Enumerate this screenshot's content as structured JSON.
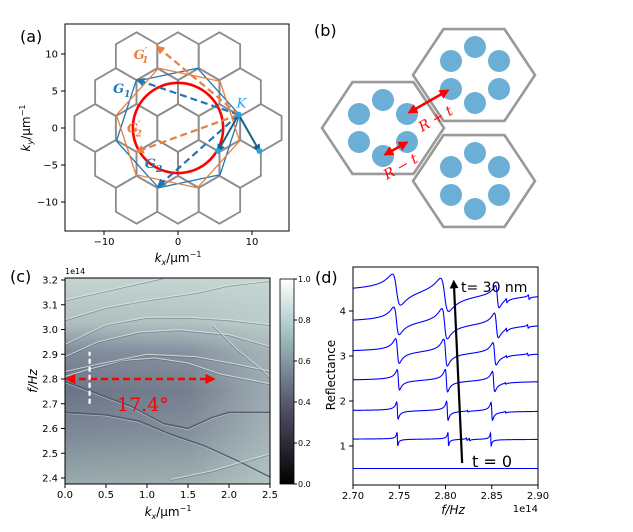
{
  "panels": {
    "a": "(a)",
    "b": "(b)",
    "c": "(c)",
    "d": "(d)"
  },
  "colors": {
    "hexagon": "#8c8c8c",
    "circle": "#ff0000",
    "blue": "#1f77b4",
    "orange": "#e8803f",
    "dark_arrow": "#1b5f85",
    "k_point": "#1ea7e8",
    "pillar": "#6baed6",
    "annotation": "#ff0000",
    "spectrum": "#0000ff"
  },
  "chart_data": [
    {
      "panel": "a",
      "type": "diagram",
      "xlabel": {
        "base": "k",
        "sub": "x",
        "unit": "/μm",
        "sup": "−1"
      },
      "ylabel": {
        "base": "k",
        "sub": "y",
        "unit": "/μm",
        "sup": "−1"
      },
      "xlim": [
        -15.3,
        15
      ],
      "ylim": [
        -14,
        14
      ],
      "xticks": [
        "−10",
        "0",
        "10"
      ],
      "xtick_values": [
        -10,
        0,
        10
      ],
      "yticks": [
        "10",
        "5",
        "0",
        "−5",
        "−10"
      ],
      "ytick_values": [
        10,
        5,
        0,
        -5,
        -10
      ],
      "hexagon_radius": 3.23,
      "hexagon_centers": [
        [
          -11.2,
          0
        ],
        [
          -5.6,
          0
        ],
        [
          0,
          0
        ],
        [
          5.6,
          0
        ],
        [
          11.2,
          0
        ],
        [
          -8.4,
          4.85
        ],
        [
          -2.8,
          4.85
        ],
        [
          2.8,
          4.85
        ],
        [
          8.4,
          4.85
        ],
        [
          -8.4,
          -4.85
        ],
        [
          -2.8,
          -4.85
        ],
        [
          2.8,
          -4.85
        ],
        [
          8.4,
          -4.85
        ],
        [
          -5.6,
          9.7
        ],
        [
          0,
          9.7
        ],
        [
          5.6,
          9.7
        ],
        [
          -5.6,
          -9.7
        ],
        [
          0,
          -9.7
        ],
        [
          5.6,
          -9.7
        ]
      ],
      "circle_radius": 6.1,
      "rotated_zones": [
        {
          "color": "blue",
          "radius": 8.5,
          "rotation_deg": 12
        },
        {
          "color": "orange",
          "radius": 8.5,
          "rotation_deg": -12
        }
      ],
      "K": {
        "label": "K",
        "point": [
          8.2,
          1.8
        ]
      },
      "vectors": [
        {
          "label": "G",
          "sub": "1",
          "prime": "",
          "color": "blue",
          "dashed": true,
          "to": [
            -5.5,
            6.5
          ],
          "label_at": [
            -7.6,
            4.7
          ]
        },
        {
          "label": "G",
          "sub": "2",
          "prime": "",
          "color": "blue",
          "dashed": true,
          "to": [
            -2.7,
            -7.9
          ],
          "label_at": [
            -3.3,
            -5.4
          ]
        },
        {
          "label": "G",
          "sub": "1",
          "prime": "′",
          "color": "orange",
          "dashed": true,
          "to": [
            -2.8,
            11.0
          ],
          "label_at": [
            -5.0,
            9.3
          ]
        },
        {
          "label": "G",
          "sub": "2",
          "prime": "′",
          "color": "orange",
          "dashed": true,
          "to": [
            -5.6,
            -3.2
          ],
          "label_at": [
            -5.9,
            -0.6
          ]
        }
      ],
      "solid_vectors": [
        [
          5.4,
          -3.1
        ],
        [
          11.0,
          -3.1
        ]
      ]
    },
    {
      "panel": "b",
      "type": "diagram",
      "labels": {
        "plus": "R + t",
        "minus": "R − t"
      }
    },
    {
      "panel": "c",
      "type": "heatmap",
      "xlabel": {
        "base": "k",
        "sub": "x",
        "unit": "/μm",
        "sup": "−1"
      },
      "ylabel": "f/Hz",
      "xlim": [
        0,
        2.52
      ],
      "ylim": [
        2.376,
        3.21
      ],
      "xticks": [
        "0.0",
        "0.5",
        "1.0",
        "1.5",
        "2.0",
        "2.5"
      ],
      "xtick_values": [
        0,
        0.5,
        1.0,
        1.5,
        2.0,
        2.5
      ],
      "yticks": [
        "2.4",
        "2.5",
        "2.6",
        "2.7",
        "2.8",
        "2.9",
        "3.0",
        "3.1",
        "3.2"
      ],
      "ytick_values": [
        2.4,
        2.5,
        2.6,
        2.7,
        2.8,
        2.9,
        3.0,
        3.1,
        3.2
      ],
      "y_offset_label": "1e14",
      "colormap": "bone",
      "colorbar_range": [
        0,
        1
      ],
      "colorbar_ticks": [
        "0.0",
        "0.2",
        "0.4",
        "0.6",
        "0.8",
        "1.0"
      ],
      "colorbar_tick_values": [
        0,
        0.2,
        0.4,
        0.6,
        0.8,
        1.0
      ],
      "annotation": {
        "text": "17.4°",
        "arrow_from": [
          0,
          2.8
        ],
        "arrow_to": [
          1.8,
          2.8
        ],
        "marker_kx": 0.3,
        "marker_f": [
          2.7,
          2.91
        ]
      }
    },
    {
      "panel": "d",
      "type": "line",
      "xlabel": "f/Hz",
      "ylabel": "Reflectance",
      "xlim": [
        2.7,
        2.9
      ],
      "ylim": [
        0.13,
        4.98
      ],
      "xticks": [
        "2.70",
        "2.75",
        "2.80",
        "2.85",
        "2.90"
      ],
      "xtick_values": [
        2.7,
        2.75,
        2.8,
        2.85,
        2.9
      ],
      "yticks": [
        "1",
        "2",
        "3",
        "4"
      ],
      "ytick_values": [
        1,
        2,
        3,
        4
      ],
      "x_offset_label": "1e14",
      "annotations": {
        "top": "t= 30 nm",
        "bottom": "t = 0",
        "arrow_from": [
          2.818,
          0.62
        ],
        "arrow_to": [
          2.809,
          4.64
        ]
      },
      "series_note_fields": [
        "offset",
        "resonances [f, amplitude, linewidth]"
      ],
      "series": [
        {
          "offset": 0.5,
          "resonances": []
        },
        {
          "offset": 1.15,
          "resonances": [
            [
              2.748,
              0.3,
              0.0004
            ],
            [
              2.803,
              0.3,
              0.0004
            ],
            [
              2.849,
              0.28,
              0.0004
            ],
            [
              2.823,
              0.06,
              0.0003
            ],
            [
              2.826,
              0.06,
              0.0003
            ]
          ]
        },
        {
          "offset": 1.78,
          "resonances": [
            [
              2.748,
              0.38,
              0.0008
            ],
            [
              2.802,
              0.42,
              0.0008
            ],
            [
              2.85,
              0.4,
              0.0008
            ],
            [
              2.824,
              0.04,
              0.0003
            ],
            [
              2.865,
              0.04,
              0.0003
            ]
          ]
        },
        {
          "offset": 2.45,
          "resonances": [
            [
              2.749,
              0.45,
              0.0013
            ],
            [
              2.801,
              0.5,
              0.0013
            ],
            [
              2.852,
              0.45,
              0.0013
            ],
            [
              2.865,
              0.04,
              0.0003
            ]
          ]
        },
        {
          "offset": 3.08,
          "resonances": [
            [
              2.748,
              0.55,
              0.002
            ],
            [
              2.8,
              0.6,
              0.002
            ],
            [
              2.853,
              0.5,
              0.0018
            ],
            [
              2.866,
              0.05,
              0.0003
            ],
            [
              2.889,
              0.06,
              0.0004
            ]
          ]
        },
        {
          "offset": 3.73,
          "resonances": [
            [
              2.747,
              0.62,
              0.003
            ],
            [
              2.799,
              0.68,
              0.003
            ],
            [
              2.855,
              0.55,
              0.0022
            ],
            [
              2.866,
              0.08,
              0.0004
            ],
            [
              2.889,
              0.08,
              0.0004
            ]
          ]
        },
        {
          "offset": 4.4,
          "resonances": [
            [
              2.747,
              0.7,
              0.0045
            ],
            [
              2.799,
              0.75,
              0.0045
            ],
            [
              2.856,
              0.5,
              0.002
            ],
            [
              2.866,
              0.1,
              0.0005
            ],
            [
              2.89,
              0.1,
              0.0005
            ]
          ]
        }
      ]
    }
  ]
}
